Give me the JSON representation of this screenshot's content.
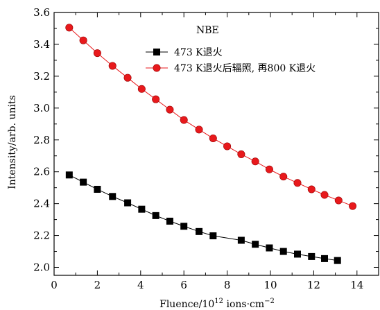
{
  "chart_data": {
    "type": "line",
    "title": "",
    "xlabel": "Fluence/10",
    "xlabel_superscript": "12",
    "xlabel_units": " ions·cm",
    "xlabel_units_superscript": "−2",
    "ylabel": "Intensity/arb. units",
    "xlim": [
      0,
      15
    ],
    "ylim": [
      1.95,
      3.6
    ],
    "xticks": [
      0,
      2,
      4,
      6,
      8,
      10,
      12,
      14
    ],
    "yticks": [
      2.0,
      2.2,
      2.4,
      2.6,
      2.8,
      3.0,
      3.2,
      3.4,
      3.6
    ],
    "xtick_labels": [
      "0",
      "2",
      "4",
      "6",
      "8",
      "10",
      "12",
      "14"
    ],
    "ytick_labels": [
      "2.0",
      "2.2",
      "2.4",
      "2.6",
      "2.8",
      "3.0",
      "3.2",
      "3.4",
      "3.6"
    ],
    "legend_title": "NBE",
    "legend_position": "top-right",
    "grid": false,
    "series": [
      {
        "name": "473 K退火",
        "color": "#000000",
        "marker": "square",
        "x": [
          0.7,
          1.35,
          2.0,
          2.7,
          3.4,
          4.05,
          4.7,
          5.35,
          6.0,
          6.7,
          7.35,
          8.65,
          9.3,
          9.95,
          10.6,
          11.25,
          11.9,
          12.5,
          13.1
        ],
        "y": [
          2.58,
          2.535,
          2.49,
          2.445,
          2.405,
          2.365,
          2.325,
          2.29,
          2.258,
          2.225,
          2.198,
          2.17,
          2.145,
          2.122,
          2.1,
          2.083,
          2.068,
          2.055,
          2.043
        ]
      },
      {
        "name": "473 K退火后辐照, 再800 K退火",
        "color": "#e8191c",
        "marker": "circle",
        "x": [
          0.7,
          1.35,
          2.0,
          2.7,
          3.4,
          4.05,
          4.7,
          5.35,
          6.0,
          6.7,
          7.35,
          8.0,
          8.65,
          9.3,
          9.95,
          10.6,
          11.25,
          11.9,
          12.5,
          13.15,
          13.8
        ],
        "y": [
          3.505,
          3.425,
          3.345,
          3.265,
          3.19,
          3.12,
          3.055,
          2.99,
          2.925,
          2.865,
          2.81,
          2.76,
          2.71,
          2.665,
          2.615,
          2.57,
          2.53,
          2.49,
          2.455,
          2.42,
          2.385
        ]
      }
    ]
  }
}
